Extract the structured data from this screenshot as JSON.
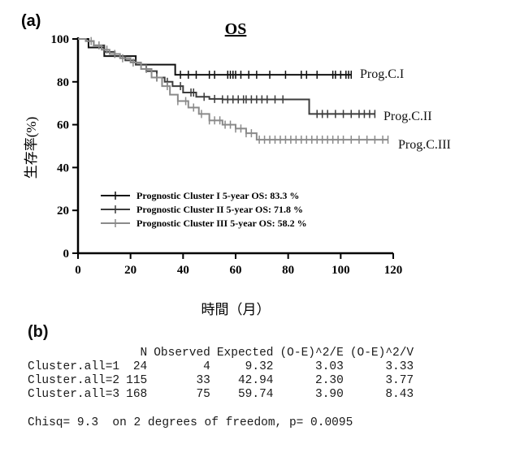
{
  "panel_a_label": "(a)",
  "panel_b_label": "(b)",
  "chart_data": {
    "type": "line",
    "title": "OS",
    "xlabel": "時間（月）",
    "ylabel": "生存率(%)",
    "xlim": [
      0,
      120
    ],
    "ylim": [
      0,
      100
    ],
    "xticks": [
      0,
      20,
      40,
      60,
      80,
      100,
      120
    ],
    "yticks": [
      0,
      20,
      40,
      60,
      80,
      100
    ],
    "grid": false,
    "legend_position": "bottom-left",
    "series": [
      {
        "name": "Prognostic Cluster I 5-year OS: 83.3 %",
        "end_label": "Prog.C.I",
        "color": "#111111",
        "steps": [
          [
            0,
            100
          ],
          [
            4,
            96
          ],
          [
            7,
            96
          ],
          [
            10,
            92
          ],
          [
            13,
            92
          ],
          [
            16,
            92
          ],
          [
            22,
            88
          ],
          [
            37,
            88
          ],
          [
            37,
            83.3
          ],
          [
            104,
            83.3
          ]
        ],
        "censored": [
          39,
          42,
          45,
          50,
          52,
          57,
          58,
          59,
          60,
          62,
          65,
          68,
          73,
          79,
          85,
          87,
          91,
          97,
          98,
          100,
          102,
          103,
          104
        ]
      },
      {
        "name": "Prognostic Cluster II 5-year OS: 71.8 %",
        "end_label": "Prog.C.II",
        "color": "#3c3c3c",
        "steps": [
          [
            0,
            100
          ],
          [
            3,
            99
          ],
          [
            6,
            97
          ],
          [
            10,
            94
          ],
          [
            14,
            92
          ],
          [
            18,
            90
          ],
          [
            22,
            88
          ],
          [
            26,
            85
          ],
          [
            30,
            82
          ],
          [
            33,
            80
          ],
          [
            36,
            78
          ],
          [
            40,
            75
          ],
          [
            45,
            73
          ],
          [
            50,
            72
          ],
          [
            55,
            71.8
          ],
          [
            88,
            71.8
          ],
          [
            88,
            65
          ],
          [
            113,
            65
          ]
        ],
        "censored": [
          30,
          34,
          39,
          43,
          44,
          48,
          52,
          55,
          57,
          59,
          61,
          63,
          64,
          66,
          68,
          70,
          72,
          75,
          78,
          91,
          93,
          95,
          98,
          101,
          104,
          107,
          109,
          111,
          113
        ]
      },
      {
        "name": "Prognostic Cluster III 5-year OS: 58.2 %",
        "end_label": "Prog.C.III",
        "color": "#8a8a8a",
        "steps": [
          [
            0,
            100
          ],
          [
            3,
            99
          ],
          [
            6,
            97
          ],
          [
            9,
            95
          ],
          [
            12,
            93
          ],
          [
            16,
            91
          ],
          [
            20,
            89
          ],
          [
            24,
            86
          ],
          [
            28,
            82
          ],
          [
            32,
            78
          ],
          [
            35,
            74
          ],
          [
            38,
            71
          ],
          [
            42,
            68
          ],
          [
            46,
            65
          ],
          [
            50,
            62
          ],
          [
            55,
            60
          ],
          [
            60,
            58.2
          ],
          [
            64,
            56
          ],
          [
            68,
            53
          ],
          [
            118,
            53
          ]
        ],
        "censored": [
          5,
          8,
          11,
          14,
          17,
          21,
          26,
          30,
          34,
          38,
          41,
          44,
          47,
          50,
          52,
          54,
          56,
          58,
          60,
          62,
          64,
          66,
          69,
          71,
          73,
          75,
          77,
          79,
          81,
          83,
          85,
          87,
          89,
          91,
          93,
          95,
          97,
          99,
          101,
          104,
          107,
          110,
          113,
          116,
          118
        ]
      }
    ]
  },
  "stats_table": {
    "columns": [
      "N",
      "Observed",
      "Expected",
      "(O-E)^2/E",
      "(O-E)^2/V"
    ],
    "rows": [
      {
        "name": "Cluster.all=1",
        "cells": [
          "24",
          "4",
          "9.32",
          "3.03",
          "3.33"
        ]
      },
      {
        "name": "Cluster.all=2",
        "cells": [
          "115",
          "33",
          "42.94",
          "2.30",
          "3.77"
        ]
      },
      {
        "name": "Cluster.all=3",
        "cells": [
          "168",
          "75",
          "59.74",
          "3.90",
          "8.43"
        ]
      }
    ],
    "chisq_line": "Chisq= 9.3  on 2 degrees of freedom, p= 0.0095"
  }
}
